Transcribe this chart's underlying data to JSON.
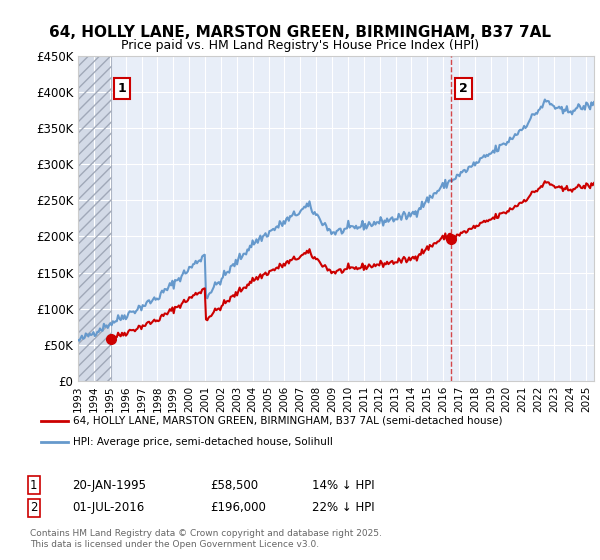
{
  "title": "64, HOLLY LANE, MARSTON GREEN, BIRMINGHAM, B37 7AL",
  "subtitle": "Price paid vs. HM Land Registry's House Price Index (HPI)",
  "ylim": [
    0,
    450000
  ],
  "yticks": [
    0,
    50000,
    100000,
    150000,
    200000,
    250000,
    300000,
    350000,
    400000,
    450000
  ],
  "ytick_labels": [
    "£0",
    "£50K",
    "£100K",
    "£150K",
    "£200K",
    "£250K",
    "£300K",
    "£350K",
    "£400K",
    "£450K"
  ],
  "sale1_date": "1995-01-20",
  "sale1_price": 58500,
  "sale1_label": "1",
  "sale2_date": "2016-07-01",
  "sale2_price": 196000,
  "sale2_label": "2",
  "line1_color": "#cc0000",
  "line2_color": "#6699cc",
  "annotation1_text": "1",
  "annotation2_text": "2",
  "legend_line1": "64, HOLLY LANE, MARSTON GREEN, BIRMINGHAM, B37 7AL (semi-detached house)",
  "legend_line2": "HPI: Average price, semi-detached house, Solihull",
  "table_row1": "1    20-JAN-1995    £58,500    14% ↓ HPI",
  "table_row2": "2    01-JUL-2016    £196,000    22% ↓ HPI",
  "footer": "Contains HM Land Registry data © Crown copyright and database right 2025.\nThis data is licensed under the Open Government Licence v3.0.",
  "background_color": "#ffffff",
  "plot_bg_color": "#e8eef8",
  "hatch_color": "#c0c8d8"
}
